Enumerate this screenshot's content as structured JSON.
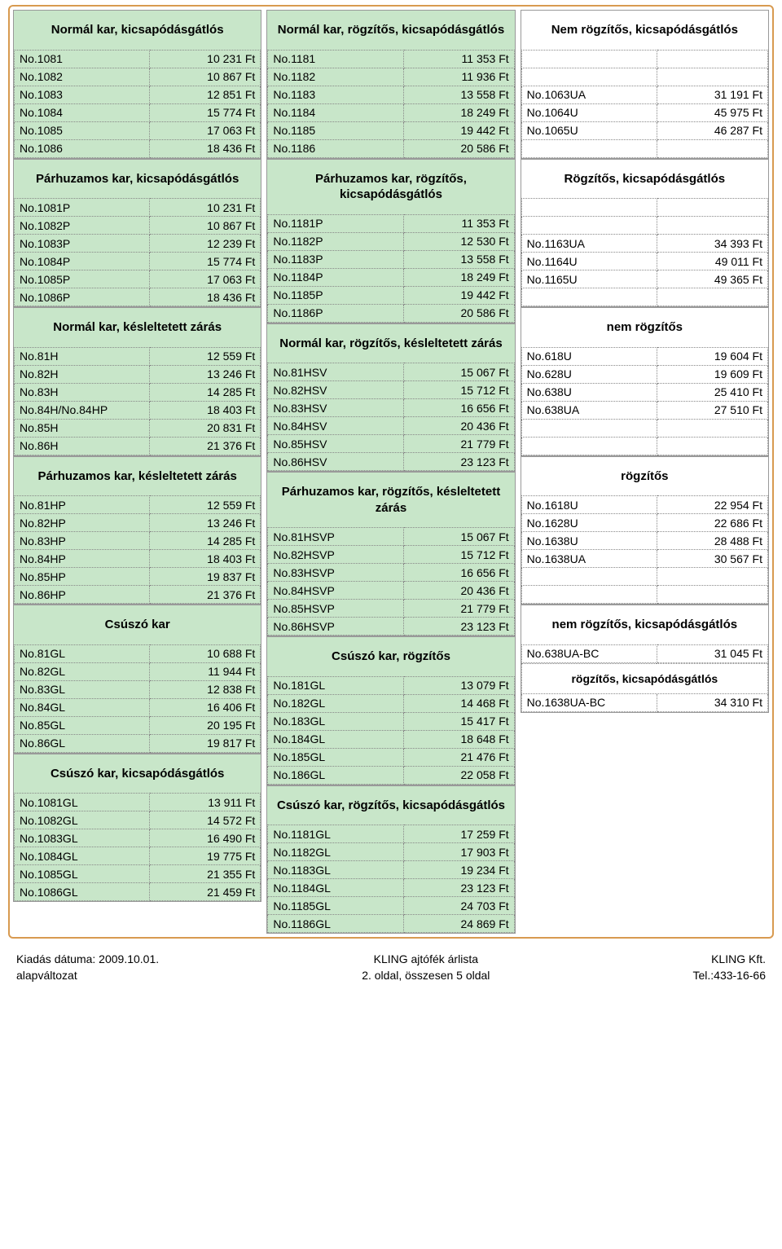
{
  "colors": {
    "panel": "#c8e6c9",
    "border": "#d89a50",
    "dot": "#888888",
    "bg": "#ffffff"
  },
  "columns": [
    {
      "blocks": [
        {
          "title": "Normál kar, kicsapódásgátlós",
          "rows": [
            [
              "No.1081",
              "10 231 Ft"
            ],
            [
              "No.1082",
              "10 867 Ft"
            ],
            [
              "No.1083",
              "12 851 Ft"
            ],
            [
              "No.1084",
              "15 774 Ft"
            ],
            [
              "No.1085",
              "17 063 Ft"
            ],
            [
              "No.1086",
              "18 436 Ft"
            ]
          ]
        },
        {
          "title": "Párhuzamos kar, kicsapódásgátlós",
          "rows": [
            [
              "No.1081P",
              "10 231 Ft"
            ],
            [
              "No.1082P",
              "10 867 Ft"
            ],
            [
              "No.1083P",
              "12 239 Ft"
            ],
            [
              "No.1084P",
              "15 774 Ft"
            ],
            [
              "No.1085P",
              "17 063 Ft"
            ],
            [
              "No.1086P",
              "18 436 Ft"
            ]
          ]
        },
        {
          "title": "Normál kar, késleltetett zárás",
          "rows": [
            [
              "No.81H",
              "12 559 Ft"
            ],
            [
              "No.82H",
              "13 246 Ft"
            ],
            [
              "No.83H",
              "14 285 Ft"
            ],
            [
              "No.84H/No.84HP",
              "18 403 Ft"
            ],
            [
              "No.85H",
              "20 831 Ft"
            ],
            [
              "No.86H",
              "21 376 Ft"
            ]
          ]
        },
        {
          "title": "Párhuzamos kar, késleltetett zárás",
          "rows": [
            [
              "No.81HP",
              "12 559 Ft"
            ],
            [
              "No.82HP",
              "13 246 Ft"
            ],
            [
              "No.83HP",
              "14 285 Ft"
            ],
            [
              "No.84HP",
              "18 403 Ft"
            ],
            [
              "No.85HP",
              "19 837 Ft"
            ],
            [
              "No.86HP",
              "21 376 Ft"
            ]
          ]
        },
        {
          "title": "Csúszó kar",
          "rows": [
            [
              "No.81GL",
              "10 688 Ft"
            ],
            [
              "No.82GL",
              "11 944 Ft"
            ],
            [
              "No.83GL",
              "12 838 Ft"
            ],
            [
              "No.84GL",
              "16 406 Ft"
            ],
            [
              "No.85GL",
              "20 195 Ft"
            ],
            [
              "No.86GL",
              "19 817 Ft"
            ]
          ]
        },
        {
          "title": "Csúszó kar, kicsapódásgátlós",
          "rows": [
            [
              "No.1081GL",
              "13 911 Ft"
            ],
            [
              "No.1082GL",
              "14 572 Ft"
            ],
            [
              "No.1083GL",
              "16 490 Ft"
            ],
            [
              "No.1084GL",
              "19 775 Ft"
            ],
            [
              "No.1085GL",
              "21 355 Ft"
            ],
            [
              "No.1086GL",
              "21 459 Ft"
            ]
          ]
        }
      ]
    },
    {
      "blocks": [
        {
          "title": "Normál kar, rögzítős, kicsapódásgátlós",
          "rows": [
            [
              "No.1181",
              "11 353 Ft"
            ],
            [
              "No.1182",
              "11 936 Ft"
            ],
            [
              "No.1183",
              "13 558 Ft"
            ],
            [
              "No.1184",
              "18 249 Ft"
            ],
            [
              "No.1185",
              "19 442 Ft"
            ],
            [
              "No.1186",
              "20 586 Ft"
            ]
          ]
        },
        {
          "title": "Párhuzamos kar, rögzítős, kicsapódásgátlós",
          "rows": [
            [
              "No.1181P",
              "11 353 Ft"
            ],
            [
              "No.1182P",
              "12 530 Ft"
            ],
            [
              "No.1183P",
              "13 558 Ft"
            ],
            [
              "No.1184P",
              "18 249 Ft"
            ],
            [
              "No.1185P",
              "19 442 Ft"
            ],
            [
              "No.1186P",
              "20 586 Ft"
            ]
          ]
        },
        {
          "title": "Normál kar, rögzítős, késleltetett zárás",
          "rows": [
            [
              "No.81HSV",
              "15 067 Ft"
            ],
            [
              "No.82HSV",
              "15 712 Ft"
            ],
            [
              "No.83HSV",
              "16 656 Ft"
            ],
            [
              "No.84HSV",
              "20 436 Ft"
            ],
            [
              "No.85HSV",
              "21 779 Ft"
            ],
            [
              "No.86HSV",
              "23 123 Ft"
            ]
          ]
        },
        {
          "title": "Párhuzamos kar, rögzítős, késleltetett zárás",
          "rows": [
            [
              "No.81HSVP",
              "15 067 Ft"
            ],
            [
              "No.82HSVP",
              "15 712 Ft"
            ],
            [
              "No.83HSVP",
              "16 656 Ft"
            ],
            [
              "No.84HSVP",
              "20 436 Ft"
            ],
            [
              "No.85HSVP",
              "21 779 Ft"
            ],
            [
              "No.86HSVP",
              "23 123 Ft"
            ]
          ]
        },
        {
          "title": "Csúszó kar, rögzítős",
          "rows": [
            [
              "No.181GL",
              "13 079 Ft"
            ],
            [
              "No.182GL",
              "14 468 Ft"
            ],
            [
              "No.183GL",
              "15 417 Ft"
            ],
            [
              "No.184GL",
              "18 648 Ft"
            ],
            [
              "No.185GL",
              "21 476 Ft"
            ],
            [
              "No.186GL",
              "22 058 Ft"
            ]
          ]
        },
        {
          "title": "Csúszó kar, rögzítős, kicsapódásgátlós",
          "rows": [
            [
              "No.1181GL",
              "17 259 Ft"
            ],
            [
              "No.1182GL",
              "17 903 Ft"
            ],
            [
              "No.1183GL",
              "19 234 Ft"
            ],
            [
              "No.1184GL",
              "23 123 Ft"
            ],
            [
              "No.1185GL",
              "24 703 Ft"
            ],
            [
              "No.1186GL",
              "24 869 Ft"
            ]
          ]
        }
      ]
    },
    {
      "blocks": [
        {
          "title": "Nem rögzítős, kicsapódásgátlós",
          "rows": [
            [
              "",
              ""
            ],
            [
              "",
              ""
            ],
            [
              "No.1063UA",
              "31 191 Ft"
            ],
            [
              "No.1064U",
              "45 975 Ft"
            ],
            [
              "No.1065U",
              "46 287 Ft"
            ],
            [
              "",
              ""
            ]
          ]
        },
        {
          "title": "Rögzítős, kicsapódásgátlós",
          "rows": [
            [
              "",
              ""
            ],
            [
              "",
              ""
            ],
            [
              "No.1163UA",
              "34 393 Ft"
            ],
            [
              "No.1164U",
              "49 011 Ft"
            ],
            [
              "No.1165U",
              "49 365 Ft"
            ],
            [
              "",
              ""
            ]
          ]
        },
        {
          "title": "nem rögzítős",
          "rows": [
            [
              "No.618U",
              "19 604 Ft"
            ],
            [
              "No.628U",
              "19 609 Ft"
            ],
            [
              "No.638U",
              "25 410 Ft"
            ],
            [
              "No.638UA",
              "27 510 Ft"
            ],
            [
              "",
              ""
            ],
            [
              "",
              ""
            ]
          ]
        },
        {
          "title": "rögzítős",
          "rows": [
            [
              "No.1618U",
              "22 954 Ft"
            ],
            [
              "No.1628U",
              "22 686 Ft"
            ],
            [
              "No.1638U",
              "28 488 Ft"
            ],
            [
              "No.1638UA",
              "30 567 Ft"
            ],
            [
              "",
              ""
            ],
            [
              "",
              ""
            ]
          ]
        },
        {
          "title": "nem rögzítős, kicsapódásgátlós",
          "white": true,
          "rows": [
            [
              "No.638UA-BC",
              "31 045 Ft"
            ]
          ],
          "sub": {
            "title": "rögzítős, kicsapódásgátlós",
            "rows": [
              [
                "No.1638UA-BC",
                "34 310 Ft"
              ]
            ]
          }
        }
      ]
    }
  ],
  "footer": {
    "left1": "Kiadás dátuma: 2009.10.01.",
    "left2": "alapváltozat",
    "center1": "KLING ajtófék árlista",
    "center2": "2. oldal, összesen 5 oldal",
    "right1": "KLING Kft.",
    "right2": "Tel.:433-16-66"
  }
}
